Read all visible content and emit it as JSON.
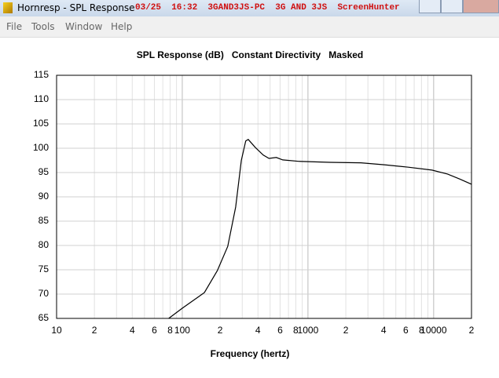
{
  "window": {
    "title": "Hornresp - SPL Response",
    "caption_overlay": "03/25  16:32  3GAND3JS-PC  3G AND 3JS  ScreenHunter"
  },
  "menu": [
    "File",
    "Tools",
    "Window",
    "Help"
  ],
  "chart_data": {
    "type": "line",
    "title": "SPL Response (dB)   Constant Directivity   Masked",
    "x_label": "Frequency (hertz)",
    "log_x": true,
    "grid": true,
    "color": "#000000",
    "xlim": [
      10,
      20000
    ],
    "ylim": [
      65,
      115
    ],
    "xticks": [
      10,
      {
        "value": 20,
        "label": "2"
      },
      {
        "value": 40,
        "label": "4"
      },
      {
        "value": 60,
        "label": "6"
      },
      {
        "value": 80,
        "label": "8"
      },
      100,
      {
        "value": 200,
        "label": "2"
      },
      {
        "value": 400,
        "label": "4"
      },
      {
        "value": 600,
        "label": "6"
      },
      {
        "value": 800,
        "label": "8"
      },
      1000,
      {
        "value": 2000,
        "label": "2"
      },
      {
        "value": 4000,
        "label": "4"
      },
      {
        "value": 6000,
        "label": "6"
      },
      {
        "value": 8000,
        "label": "8"
      },
      10000,
      {
        "value": 20000,
        "label": "2"
      }
    ],
    "x_minor_grid": [
      30,
      50,
      70,
      90,
      300,
      500,
      700,
      900,
      3000,
      5000,
      7000,
      9000
    ],
    "yticks": [
      65,
      70,
      75,
      80,
      85,
      90,
      95,
      100,
      105,
      110,
      115
    ],
    "x": [
      78,
      100,
      150,
      190,
      230,
      266,
      295,
      320,
      335,
      380,
      440,
      490,
      560,
      630,
      840,
      1500,
      2640,
      4060,
      6290,
      9700,
      12900,
      16000,
      20000
    ],
    "values": [
      65,
      67.1,
      70.3,
      74.8,
      79.8,
      87.9,
      97.5,
      101.5,
      101.8,
      100.2,
      98.6,
      97.9,
      98.1,
      97.6,
      97.3,
      97.1,
      97.0,
      96.6,
      96.1,
      95.5,
      94.7,
      93.7,
      92.6
    ]
  }
}
